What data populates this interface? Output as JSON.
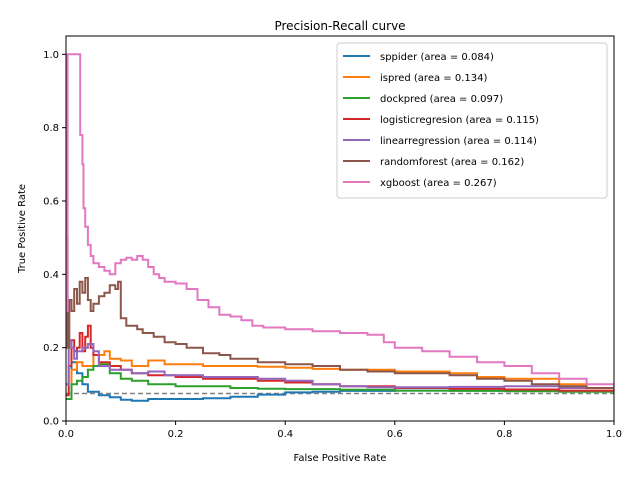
{
  "chart_data": {
    "type": "line",
    "title": "Precision-Recall curve",
    "xlabel": "False Positive Rate",
    "ylabel": "True Positive Rate",
    "xlim": [
      0,
      1
    ],
    "ylim": [
      0,
      1.05
    ],
    "xticks": [
      "0.0",
      "0.2",
      "0.4",
      "0.6",
      "0.8",
      "1.0"
    ],
    "yticks": [
      "0.0",
      "0.2",
      "0.4",
      "0.6",
      "0.8",
      "1.0"
    ],
    "grid": false,
    "legend_position": "top-right",
    "baseline": {
      "y": 0.075,
      "color": "#808080",
      "style": "dashed"
    },
    "series": [
      {
        "name": "sppider (area = 0.084)",
        "color": "#1f77b4",
        "points": [
          [
            0,
            0.06
          ],
          [
            0.01,
            0.16
          ],
          [
            0.02,
            0.13
          ],
          [
            0.03,
            0.1
          ],
          [
            0.04,
            0.08
          ],
          [
            0.06,
            0.07
          ],
          [
            0.08,
            0.065
          ],
          [
            0.1,
            0.058
          ],
          [
            0.12,
            0.055
          ],
          [
            0.15,
            0.06
          ],
          [
            0.2,
            0.06
          ],
          [
            0.25,
            0.062
          ],
          [
            0.3,
            0.066
          ],
          [
            0.35,
            0.072
          ],
          [
            0.4,
            0.078
          ],
          [
            0.45,
            0.08
          ],
          [
            0.5,
            0.082
          ],
          [
            0.6,
            0.083
          ],
          [
            0.7,
            0.083
          ],
          [
            0.8,
            0.082
          ],
          [
            0.9,
            0.081
          ],
          [
            1.0,
            0.078
          ]
        ]
      },
      {
        "name": "ispred (area = 0.134)",
        "color": "#ff7f0e",
        "points": [
          [
            0,
            0.06
          ],
          [
            0.01,
            0.14
          ],
          [
            0.02,
            0.16
          ],
          [
            0.03,
            0.15
          ],
          [
            0.05,
            0.18
          ],
          [
            0.07,
            0.19
          ],
          [
            0.08,
            0.17
          ],
          [
            0.1,
            0.165
          ],
          [
            0.12,
            0.15
          ],
          [
            0.15,
            0.165
          ],
          [
            0.18,
            0.155
          ],
          [
            0.2,
            0.155
          ],
          [
            0.25,
            0.15
          ],
          [
            0.3,
            0.15
          ],
          [
            0.35,
            0.148
          ],
          [
            0.4,
            0.145
          ],
          [
            0.45,
            0.142
          ],
          [
            0.5,
            0.14
          ],
          [
            0.55,
            0.14
          ],
          [
            0.6,
            0.135
          ],
          [
            0.7,
            0.13
          ],
          [
            0.75,
            0.12
          ],
          [
            0.8,
            0.115
          ],
          [
            0.9,
            0.1
          ],
          [
            0.95,
            0.09
          ],
          [
            1.0,
            0.08
          ]
        ]
      },
      {
        "name": "dockpred (area = 0.097)",
        "color": "#2ca02c",
        "points": [
          [
            0,
            0.06
          ],
          [
            0.01,
            0.1
          ],
          [
            0.02,
            0.11
          ],
          [
            0.03,
            0.12
          ],
          [
            0.04,
            0.14
          ],
          [
            0.05,
            0.15
          ],
          [
            0.06,
            0.155
          ],
          [
            0.08,
            0.13
          ],
          [
            0.1,
            0.115
          ],
          [
            0.12,
            0.11
          ],
          [
            0.15,
            0.1
          ],
          [
            0.18,
            0.1
          ],
          [
            0.2,
            0.095
          ],
          [
            0.25,
            0.095
          ],
          [
            0.3,
            0.09
          ],
          [
            0.35,
            0.088
          ],
          [
            0.4,
            0.087
          ],
          [
            0.5,
            0.085
          ],
          [
            0.6,
            0.083
          ],
          [
            0.7,
            0.082
          ],
          [
            0.8,
            0.081
          ],
          [
            0.9,
            0.08
          ],
          [
            1.0,
            0.078
          ]
        ]
      },
      {
        "name": "logisticregresion (area = 0.115)",
        "color": "#d62728",
        "points": [
          [
            0,
            0.07
          ],
          [
            0.005,
            0.15
          ],
          [
            0.01,
            0.22
          ],
          [
            0.015,
            0.19
          ],
          [
            0.02,
            0.2
          ],
          [
            0.025,
            0.24
          ],
          [
            0.03,
            0.19
          ],
          [
            0.035,
            0.23
          ],
          [
            0.04,
            0.26
          ],
          [
            0.045,
            0.2
          ],
          [
            0.05,
            0.18
          ],
          [
            0.06,
            0.16
          ],
          [
            0.08,
            0.15
          ],
          [
            0.1,
            0.14
          ],
          [
            0.12,
            0.13
          ],
          [
            0.15,
            0.125
          ],
          [
            0.2,
            0.12
          ],
          [
            0.25,
            0.115
          ],
          [
            0.3,
            0.115
          ],
          [
            0.35,
            0.11
          ],
          [
            0.4,
            0.105
          ],
          [
            0.45,
            0.1
          ],
          [
            0.5,
            0.095
          ],
          [
            0.6,
            0.09
          ],
          [
            0.7,
            0.088
          ],
          [
            0.8,
            0.086
          ],
          [
            0.9,
            0.083
          ],
          [
            1.0,
            0.08
          ]
        ]
      },
      {
        "name": "linearregression (area = 0.114)",
        "color": "#9467bd",
        "points": [
          [
            0,
            0.1
          ],
          [
            0.005,
            0.22
          ],
          [
            0.01,
            0.2
          ],
          [
            0.015,
            0.17
          ],
          [
            0.02,
            0.19
          ],
          [
            0.03,
            0.2
          ],
          [
            0.04,
            0.21
          ],
          [
            0.05,
            0.19
          ],
          [
            0.06,
            0.15
          ],
          [
            0.08,
            0.14
          ],
          [
            0.1,
            0.14
          ],
          [
            0.12,
            0.13
          ],
          [
            0.15,
            0.135
          ],
          [
            0.18,
            0.125
          ],
          [
            0.2,
            0.125
          ],
          [
            0.25,
            0.12
          ],
          [
            0.3,
            0.12
          ],
          [
            0.35,
            0.115
          ],
          [
            0.4,
            0.11
          ],
          [
            0.45,
            0.1
          ],
          [
            0.5,
            0.095
          ],
          [
            0.55,
            0.092
          ],
          [
            0.6,
            0.092
          ],
          [
            0.7,
            0.093
          ],
          [
            0.8,
            0.095
          ],
          [
            0.9,
            0.09
          ],
          [
            1.0,
            0.08
          ]
        ]
      },
      {
        "name": "randomforest (area = 0.162)",
        "color": "#8c564b",
        "points": [
          [
            0,
            0.5
          ],
          [
            0.003,
            0.2
          ],
          [
            0.006,
            0.33
          ],
          [
            0.01,
            0.3
          ],
          [
            0.015,
            0.36
          ],
          [
            0.02,
            0.32
          ],
          [
            0.025,
            0.38
          ],
          [
            0.03,
            0.35
          ],
          [
            0.035,
            0.39
          ],
          [
            0.04,
            0.33
          ],
          [
            0.045,
            0.3
          ],
          [
            0.05,
            0.32
          ],
          [
            0.06,
            0.34
          ],
          [
            0.07,
            0.35
          ],
          [
            0.08,
            0.37
          ],
          [
            0.09,
            0.36
          ],
          [
            0.095,
            0.38
          ],
          [
            0.1,
            0.28
          ],
          [
            0.11,
            0.26
          ],
          [
            0.13,
            0.25
          ],
          [
            0.14,
            0.24
          ],
          [
            0.16,
            0.23
          ],
          [
            0.18,
            0.215
          ],
          [
            0.2,
            0.21
          ],
          [
            0.22,
            0.2
          ],
          [
            0.25,
            0.185
          ],
          [
            0.28,
            0.18
          ],
          [
            0.3,
            0.17
          ],
          [
            0.35,
            0.16
          ],
          [
            0.4,
            0.155
          ],
          [
            0.45,
            0.15
          ],
          [
            0.5,
            0.14
          ],
          [
            0.55,
            0.135
          ],
          [
            0.6,
            0.13
          ],
          [
            0.65,
            0.13
          ],
          [
            0.7,
            0.125
          ],
          [
            0.75,
            0.115
          ],
          [
            0.8,
            0.11
          ],
          [
            0.85,
            0.1
          ],
          [
            0.9,
            0.095
          ],
          [
            0.95,
            0.09
          ],
          [
            1.0,
            0.08
          ]
        ]
      },
      {
        "name": "xgboost (area = 0.267)",
        "color": "#e377c2",
        "points": [
          [
            0,
            1.0
          ],
          [
            0.001,
            0.3
          ],
          [
            0.003,
            1.0
          ],
          [
            0.025,
            1.0
          ],
          [
            0.026,
            0.78
          ],
          [
            0.03,
            0.7
          ],
          [
            0.032,
            0.58
          ],
          [
            0.035,
            0.53
          ],
          [
            0.04,
            0.48
          ],
          [
            0.045,
            0.45
          ],
          [
            0.05,
            0.43
          ],
          [
            0.06,
            0.42
          ],
          [
            0.07,
            0.41
          ],
          [
            0.08,
            0.4
          ],
          [
            0.09,
            0.43
          ],
          [
            0.1,
            0.44
          ],
          [
            0.11,
            0.445
          ],
          [
            0.12,
            0.44
          ],
          [
            0.13,
            0.45
          ],
          [
            0.14,
            0.44
          ],
          [
            0.15,
            0.42
          ],
          [
            0.16,
            0.4
          ],
          [
            0.17,
            0.39
          ],
          [
            0.18,
            0.38
          ],
          [
            0.2,
            0.375
          ],
          [
            0.22,
            0.36
          ],
          [
            0.24,
            0.33
          ],
          [
            0.26,
            0.31
          ],
          [
            0.28,
            0.29
          ],
          [
            0.3,
            0.285
          ],
          [
            0.32,
            0.275
          ],
          [
            0.34,
            0.26
          ],
          [
            0.36,
            0.255
          ],
          [
            0.38,
            0.255
          ],
          [
            0.4,
            0.25
          ],
          [
            0.45,
            0.245
          ],
          [
            0.5,
            0.24
          ],
          [
            0.55,
            0.235
          ],
          [
            0.58,
            0.215
          ],
          [
            0.6,
            0.2
          ],
          [
            0.65,
            0.19
          ],
          [
            0.7,
            0.175
          ],
          [
            0.75,
            0.16
          ],
          [
            0.8,
            0.15
          ],
          [
            0.85,
            0.13
          ],
          [
            0.9,
            0.115
          ],
          [
            0.95,
            0.1
          ],
          [
            1.0,
            0.085
          ]
        ]
      }
    ]
  }
}
